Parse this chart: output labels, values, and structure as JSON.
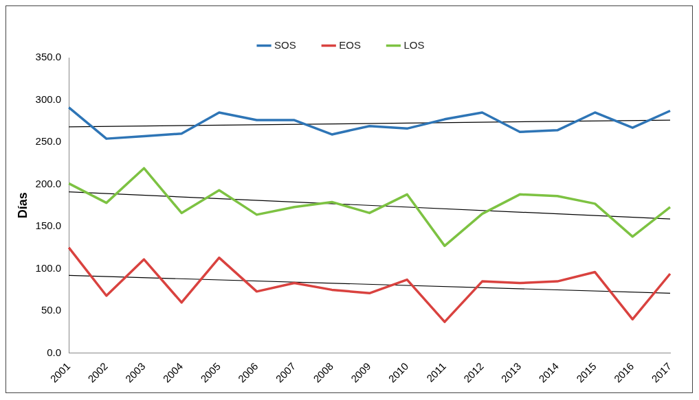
{
  "chart_data": {
    "type": "line",
    "ylabel": "Días",
    "categories": [
      "2001",
      "2002",
      "2003",
      "2004",
      "2005",
      "2006",
      "2007",
      "2008",
      "2009",
      "2010",
      "2011",
      "2012",
      "2013",
      "2014",
      "2015",
      "2016",
      "2017"
    ],
    "series": [
      {
        "name": "SOS",
        "color": "#2e75b6",
        "values": [
          291,
          254,
          257,
          260,
          285,
          276,
          276,
          259,
          269,
          266,
          277,
          285,
          262,
          264,
          285,
          267,
          287
        ]
      },
      {
        "name": "EOS",
        "color": "#d9423f",
        "values": [
          125,
          68,
          111,
          60,
          113,
          73,
          83,
          75,
          71,
          87,
          37,
          85,
          83,
          85,
          96,
          40,
          94
        ]
      },
      {
        "name": "LOS",
        "color": "#7dc242",
        "values": [
          201,
          178,
          219,
          166,
          193,
          164,
          173,
          179,
          166,
          188,
          127,
          165,
          188,
          186,
          177,
          138,
          173
        ]
      },
      {
        "color": "#000000",
        "values": [
          268,
          null,
          null,
          null,
          null,
          null,
          null,
          null,
          null,
          null,
          null,
          null,
          null,
          null,
          null,
          null,
          276
        ]
      },
      {
        "color": "#000000",
        "values": [
          92,
          null,
          null,
          null,
          null,
          null,
          null,
          null,
          null,
          null,
          null,
          null,
          null,
          null,
          null,
          null,
          71
        ]
      },
      {
        "color": "#000000",
        "values": [
          191,
          null,
          null,
          null,
          null,
          null,
          null,
          null,
          null,
          null,
          null,
          null,
          null,
          null,
          null,
          null,
          159
        ]
      }
    ],
    "ylim": [
      0,
      350
    ],
    "yticks": [
      {
        "value": 0,
        "label": "0.0"
      },
      {
        "value": 50,
        "label": "50.0"
      },
      {
        "value": 100,
        "label": "100.0"
      },
      {
        "value": 150,
        "label": "150.0"
      },
      {
        "value": 200,
        "label": "200.0"
      },
      {
        "value": 250,
        "label": "250.0"
      },
      {
        "value": 300,
        "label": "300.0"
      },
      {
        "value": 350,
        "label": "350.0"
      }
    ],
    "grid": false,
    "legend": "top",
    "marker": "none",
    "line_style": "solid"
  }
}
